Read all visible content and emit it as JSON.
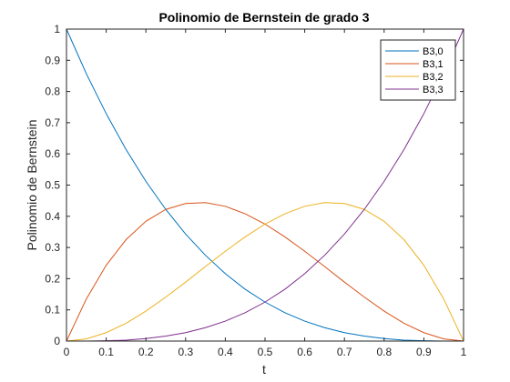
{
  "chart_data": {
    "type": "line",
    "title": "Polinomio de Bernstein de grado 3",
    "xlabel": "t",
    "ylabel": "Polinomio de Bernstein",
    "xlim": [
      0,
      1
    ],
    "ylim": [
      0,
      1
    ],
    "xticks": [
      "0",
      "0.1",
      "0.2",
      "0.3",
      "0.4",
      "0.5",
      "0.6",
      "0.7",
      "0.8",
      "0.9",
      "1"
    ],
    "yticks": [
      "0",
      "0.1",
      "0.2",
      "0.3",
      "0.4",
      "0.5",
      "0.6",
      "0.7",
      "0.8",
      "0.9",
      "1"
    ],
    "grid": false,
    "legend_position": "top-right",
    "x": [
      0,
      0.05,
      0.1,
      0.15,
      0.2,
      0.25,
      0.3,
      0.35,
      0.4,
      0.45,
      0.5,
      0.55,
      0.6,
      0.65,
      0.7,
      0.75,
      0.8,
      0.85,
      0.9,
      0.95,
      1
    ],
    "series": [
      {
        "name": "B3,0",
        "color": "#0072BD",
        "values": [
          1,
          0.857,
          0.729,
          0.614,
          0.512,
          0.422,
          0.343,
          0.275,
          0.216,
          0.166,
          0.125,
          0.091,
          0.064,
          0.043,
          0.027,
          0.016,
          0.008,
          0.003,
          0.001,
          0,
          0
        ]
      },
      {
        "name": "B3,1",
        "color": "#D95319",
        "values": [
          0,
          0.135,
          0.243,
          0.325,
          0.384,
          0.422,
          0.441,
          0.444,
          0.432,
          0.408,
          0.375,
          0.334,
          0.288,
          0.239,
          0.189,
          0.141,
          0.096,
          0.057,
          0.027,
          0.007,
          0
        ]
      },
      {
        "name": "B3,2",
        "color": "#EDB120",
        "values": [
          0,
          0.007,
          0.027,
          0.057,
          0.096,
          0.141,
          0.189,
          0.239,
          0.288,
          0.334,
          0.375,
          0.408,
          0.432,
          0.444,
          0.441,
          0.422,
          0.384,
          0.325,
          0.243,
          0.135,
          0
        ]
      },
      {
        "name": "B3,3",
        "color": "#7E2F8E",
        "values": [
          0,
          0,
          0.001,
          0.003,
          0.008,
          0.016,
          0.027,
          0.043,
          0.064,
          0.091,
          0.125,
          0.166,
          0.216,
          0.275,
          0.343,
          0.422,
          0.512,
          0.614,
          0.729,
          0.857,
          1
        ]
      }
    ]
  }
}
